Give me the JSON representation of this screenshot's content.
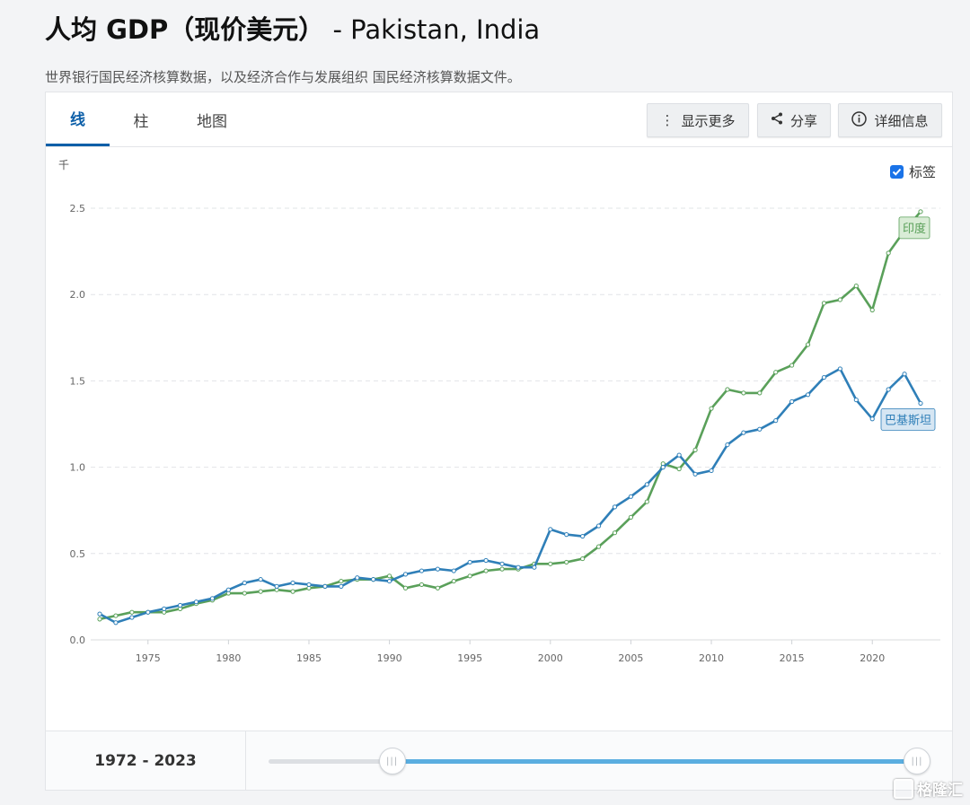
{
  "page": {
    "title_cn": "人均 GDP（现价美元）",
    "title_sep": " - ",
    "title_countries": "Pakistan, India",
    "subtitle": "世界银行国民经济核算数据，以及经济合作与发展组织 国民经济核算数据文件。"
  },
  "tabs": [
    {
      "label": "线",
      "active": true
    },
    {
      "label": "柱",
      "active": false
    },
    {
      "label": "地图",
      "active": false
    }
  ],
  "toolbar": {
    "more_label": "显示更多",
    "more_icon": "vertical-dots-icon",
    "share_label": "分享",
    "share_icon": "share-icon",
    "details_label": "详细信息",
    "details_icon": "info-icon"
  },
  "chart_options": {
    "labels_toggle_label": "标签",
    "labels_checked": true
  },
  "range": {
    "label": "1972 - 2023",
    "start_year": 1972,
    "end_year": 2023,
    "min_year": 1960,
    "max_year": 2023
  },
  "watermark": "格隆汇",
  "chart_data": {
    "type": "line",
    "unit_label": "千",
    "ylim": [
      0,
      2.5
    ],
    "yticks": [
      0.0,
      0.5,
      1.0,
      1.5,
      2.0,
      2.5
    ],
    "ytick_labels": [
      "0.0",
      "0.5",
      "1.0",
      "1.5",
      "2.0",
      "2.5"
    ],
    "xlim": [
      1972,
      2023
    ],
    "xticks": [
      1975,
      1980,
      1985,
      1990,
      1995,
      2000,
      2005,
      2010,
      2015,
      2020
    ],
    "grid": "horizontal-dashed",
    "x": [
      1972,
      1973,
      1974,
      1975,
      1976,
      1977,
      1978,
      1979,
      1980,
      1981,
      1982,
      1983,
      1984,
      1985,
      1986,
      1987,
      1988,
      1989,
      1990,
      1991,
      1992,
      1993,
      1994,
      1995,
      1996,
      1997,
      1998,
      1999,
      2000,
      2001,
      2002,
      2003,
      2004,
      2005,
      2006,
      2007,
      2008,
      2009,
      2010,
      2011,
      2012,
      2013,
      2014,
      2015,
      2016,
      2017,
      2018,
      2019,
      2020,
      2021,
      2022,
      2023
    ],
    "series": [
      {
        "name": "印度",
        "color": "#5aa05a",
        "label_fill": "#d9ecd6",
        "values": [
          0.12,
          0.14,
          0.16,
          0.16,
          0.16,
          0.18,
          0.21,
          0.23,
          0.27,
          0.27,
          0.28,
          0.29,
          0.28,
          0.3,
          0.31,
          0.34,
          0.35,
          0.35,
          0.37,
          0.3,
          0.32,
          0.3,
          0.34,
          0.37,
          0.4,
          0.41,
          0.41,
          0.44,
          0.44,
          0.45,
          0.47,
          0.54,
          0.62,
          0.71,
          0.8,
          1.02,
          0.99,
          1.1,
          1.34,
          1.45,
          1.43,
          1.43,
          1.55,
          1.59,
          1.71,
          1.95,
          1.97,
          2.05,
          1.91,
          2.24,
          2.37,
          2.48
        ]
      },
      {
        "name": "巴基斯坦",
        "color": "#2f7fb8",
        "label_fill": "#d6e6f3",
        "values": [
          0.15,
          0.1,
          0.13,
          0.16,
          0.18,
          0.2,
          0.22,
          0.24,
          0.29,
          0.33,
          0.35,
          0.31,
          0.33,
          0.32,
          0.31,
          0.31,
          0.36,
          0.35,
          0.34,
          0.38,
          0.4,
          0.41,
          0.4,
          0.45,
          0.46,
          0.44,
          0.42,
          0.42,
          0.64,
          0.61,
          0.6,
          0.66,
          0.77,
          0.83,
          0.9,
          1.0,
          1.07,
          0.96,
          0.98,
          1.13,
          1.2,
          1.22,
          1.27,
          1.38,
          1.42,
          1.52,
          1.57,
          1.39,
          1.28,
          1.45,
          1.54,
          1.37
        ]
      }
    ]
  }
}
